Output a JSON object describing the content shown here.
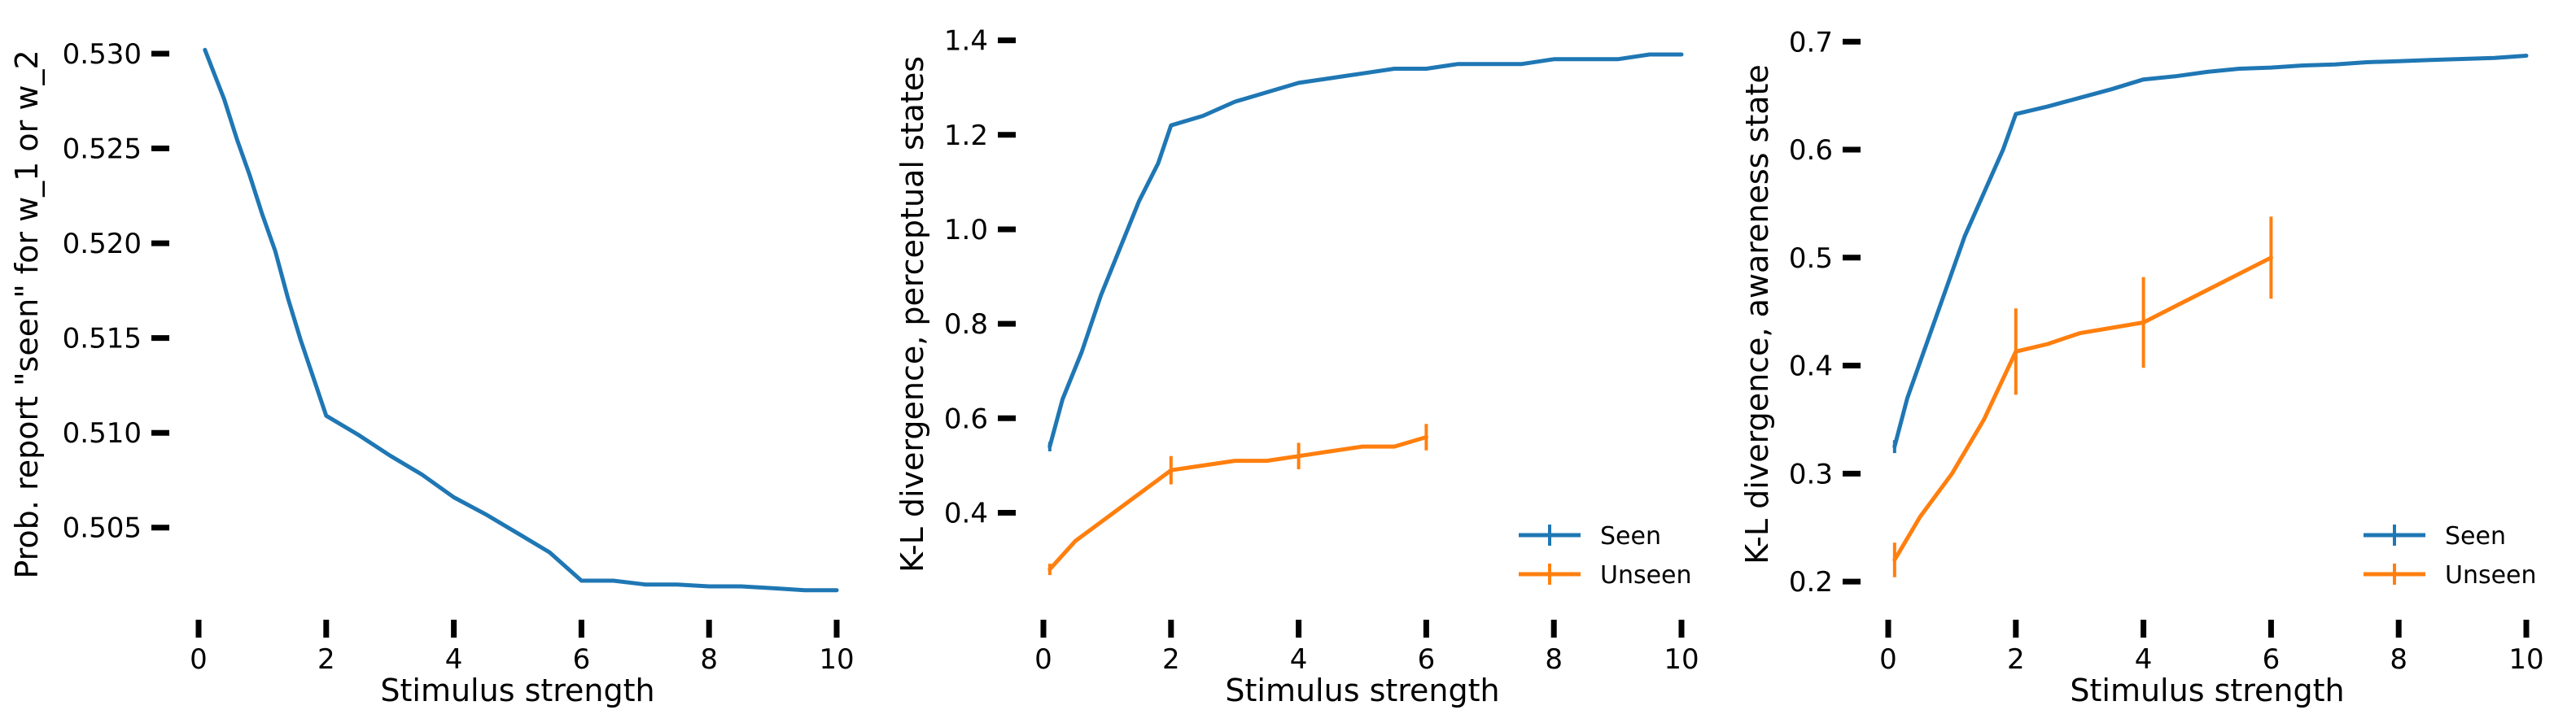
{
  "chart_data": [
    {
      "type": "line",
      "xlabel": "Stimulus strength",
      "ylabel": "Prob. report \"seen\" for w_1 or w_2",
      "xlim": [
        0,
        10
      ],
      "ylim": [
        0.5013,
        0.5312
      ],
      "xticks": [
        0,
        2,
        4,
        6,
        8,
        10
      ],
      "yticks": [
        0.505,
        0.51,
        0.515,
        0.52,
        0.525,
        0.53
      ],
      "ytick_labels": [
        "0.505",
        "0.510",
        "0.515",
        "0.520",
        "0.525",
        "0.530"
      ],
      "grid": false,
      "legend": null,
      "series": [
        {
          "color": "#1f77b4",
          "x": [
            0.1,
            0.4,
            0.6,
            0.8,
            1.0,
            1.2,
            1.4,
            1.6,
            1.8,
            2.0,
            2.5,
            3.0,
            3.5,
            4.0,
            4.5,
            5.0,
            5.5,
            6.0,
            6.5,
            7.0,
            7.5,
            8.0,
            8.5,
            9.0,
            9.5,
            10.0
          ],
          "y": [
            0.5302,
            0.5276,
            0.5255,
            0.5236,
            0.5215,
            0.5196,
            0.5171,
            0.5149,
            0.5129,
            0.5109,
            0.5099,
            0.5088,
            0.5078,
            0.5066,
            0.5057,
            0.5047,
            0.5037,
            0.5022,
            0.5022,
            0.502,
            0.502,
            0.5019,
            0.5019,
            0.5018,
            0.5017,
            0.5017
          ],
          "errors": []
        }
      ]
    },
    {
      "type": "line",
      "xlabel": "Stimulus strength",
      "ylabel": "K-L divergence, perceptual states",
      "xlim": [
        0,
        10
      ],
      "ylim": [
        0.22,
        1.42
      ],
      "xticks": [
        0,
        2,
        4,
        6,
        8,
        10
      ],
      "yticks": [
        0.4,
        0.6,
        0.8,
        1.0,
        1.2,
        1.4
      ],
      "ytick_labels": [
        "0.4",
        "0.6",
        "0.8",
        "1.0",
        "1.2",
        "1.4"
      ],
      "grid": false,
      "legend": "lower-right",
      "series": [
        {
          "name": "Seen",
          "color": "#1f77b4",
          "x": [
            0.1,
            0.3,
            0.6,
            0.9,
            1.2,
            1.5,
            1.8,
            2.0,
            2.5,
            3.0,
            3.5,
            4.0,
            4.5,
            5.0,
            5.5,
            6.0,
            6.5,
            7.0,
            7.5,
            8.0,
            8.5,
            9.0,
            9.5,
            10.0
          ],
          "y": [
            0.54,
            0.64,
            0.74,
            0.86,
            0.96,
            1.06,
            1.14,
            1.22,
            1.24,
            1.27,
            1.29,
            1.31,
            1.32,
            1.33,
            1.34,
            1.34,
            1.35,
            1.35,
            1.35,
            1.36,
            1.36,
            1.36,
            1.37,
            1.37
          ],
          "errors": [
            {
              "x": 0.1,
              "y": 0.54,
              "err": 0.01
            }
          ]
        },
        {
          "name": "Unseen",
          "color": "#ff7f0e",
          "x": [
            0.1,
            0.5,
            1.0,
            1.5,
            2.0,
            2.5,
            3.0,
            3.5,
            4.0,
            4.5,
            5.0,
            5.5,
            6.0
          ],
          "y": [
            0.28,
            0.34,
            0.39,
            0.44,
            0.49,
            0.5,
            0.51,
            0.51,
            0.52,
            0.53,
            0.54,
            0.54,
            0.56
          ],
          "errors": [
            {
              "x": 0.1,
              "y": 0.28,
              "err": 0.012
            },
            {
              "x": 2.0,
              "y": 0.49,
              "err": 0.03
            },
            {
              "x": 4.0,
              "y": 0.52,
              "err": 0.028
            },
            {
              "x": 6.0,
              "y": 0.56,
              "err": 0.028
            }
          ]
        }
      ]
    },
    {
      "type": "line",
      "xlabel": "Stimulus strength",
      "ylabel": "K-L divergence, awareness state",
      "xlim": [
        0,
        10
      ],
      "ylim": [
        0.185,
        0.71
      ],
      "xticks": [
        0,
        2,
        4,
        6,
        8,
        10
      ],
      "yticks": [
        0.2,
        0.3,
        0.4,
        0.5,
        0.6,
        0.7
      ],
      "ytick_labels": [
        "0.2",
        "0.3",
        "0.4",
        "0.5",
        "0.6",
        "0.7"
      ],
      "grid": false,
      "legend": "lower-right",
      "series": [
        {
          "name": "Seen",
          "color": "#1f77b4",
          "x": [
            0.1,
            0.3,
            0.6,
            0.9,
            1.2,
            1.5,
            1.8,
            2.0,
            2.5,
            3.0,
            3.5,
            4.0,
            4.5,
            5.0,
            5.5,
            6.0,
            6.5,
            7.0,
            7.5,
            8.0,
            8.5,
            9.0,
            9.5,
            10.0
          ],
          "y": [
            0.325,
            0.37,
            0.42,
            0.47,
            0.52,
            0.56,
            0.6,
            0.633,
            0.64,
            0.648,
            0.656,
            0.665,
            0.668,
            0.672,
            0.675,
            0.676,
            0.678,
            0.679,
            0.681,
            0.682,
            0.683,
            0.684,
            0.685,
            0.687
          ],
          "errors": [
            {
              "x": 0.1,
              "y": 0.325,
              "err": 0.006
            }
          ]
        },
        {
          "name": "Unseen",
          "color": "#ff7f0e",
          "x": [
            0.1,
            0.5,
            1.0,
            1.5,
            2.0,
            2.5,
            3.0,
            3.5,
            4.0,
            4.5,
            5.0,
            5.5,
            6.0
          ],
          "y": [
            0.22,
            0.26,
            0.3,
            0.35,
            0.413,
            0.42,
            0.43,
            0.435,
            0.44,
            0.455,
            0.47,
            0.485,
            0.5
          ],
          "errors": [
            {
              "x": 0.1,
              "y": 0.22,
              "err": 0.016
            },
            {
              "x": 2.0,
              "y": 0.413,
              "err": 0.04
            },
            {
              "x": 4.0,
              "y": 0.44,
              "err": 0.042
            },
            {
              "x": 6.0,
              "y": 0.5,
              "err": 0.038
            }
          ]
        }
      ]
    }
  ]
}
